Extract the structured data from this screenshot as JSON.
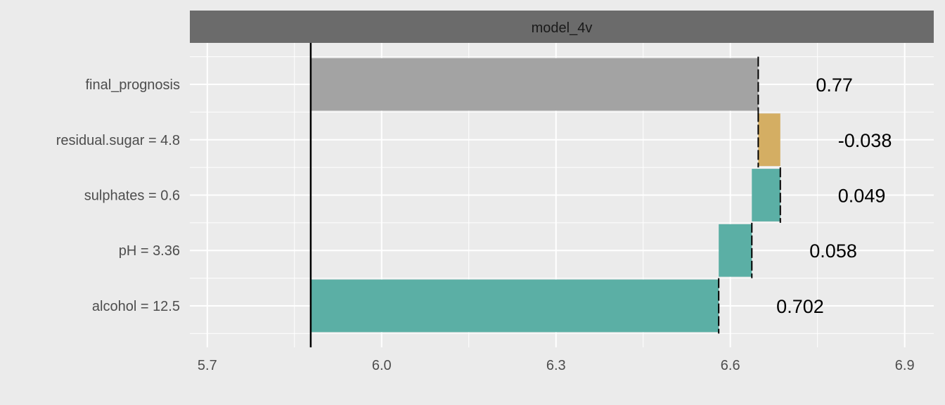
{
  "chart_data": {
    "type": "bar",
    "subtype": "break-down waterfall",
    "panel_title": "model_4v",
    "xlim": [
      5.67,
      6.95
    ],
    "x_ticks": [
      "5.7",
      "6.0",
      "6.3",
      "6.6",
      "6.9"
    ],
    "x_tick_values": [
      5.7,
      6.0,
      6.3,
      6.6,
      6.9
    ],
    "baseline": 5.878,
    "grid": true,
    "legend": "none",
    "bars": [
      {
        "label": "final_prognosis",
        "start": 5.878,
        "end": 6.648,
        "value_label": "0.77",
        "color": "#a3a3a3"
      },
      {
        "label": "residual.sugar = 4.8",
        "start": 6.686,
        "end": 6.648,
        "value_label": "-0.038",
        "color": "#d4ae63"
      },
      {
        "label": "sulphates = 0.6",
        "start": 6.637,
        "end": 6.686,
        "value_label": "0.049",
        "color": "#5bafa5"
      },
      {
        "label": "pH = 3.36",
        "start": 6.58,
        "end": 6.637,
        "value_label": "0.058",
        "color": "#5bafa5"
      },
      {
        "label": "alcohol = 12.5",
        "start": 5.878,
        "end": 6.58,
        "value_label": "0.702",
        "color": "#5bafa5"
      }
    ]
  }
}
